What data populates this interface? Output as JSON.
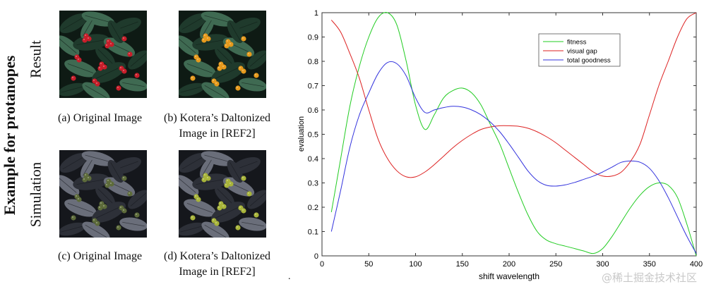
{
  "figure": {
    "side_title": "Example for protanopes",
    "row_result": "Result",
    "row_simulation": "Simulation",
    "captions": {
      "a": "(a) Original Image",
      "b1": "(b) Kotera’s Daltonized",
      "b2": "Image in [REF2]",
      "c": "(c) Original Image",
      "d1": "(d) Kotera’s Daltonized",
      "d2": "Image in [REF2]"
    },
    "dot": ".",
    "watermark": "@稀土掘金技术社区",
    "photo_colors": {
      "original_berry": "#c81e2a",
      "daltonized_berry": "#e69a1c",
      "sim_original_berry": "#5d6b3a",
      "sim_daltonized_berry": "#a8b43a",
      "leaf_dark": "#1f3a2c",
      "leaf_mid": "#3f6a52",
      "sim_leaf_dark": "#2d3038",
      "sim_leaf_mid": "#6a6e7a"
    }
  },
  "chart_data": {
    "type": "line",
    "xlabel": "shift wavelength",
    "ylabel": "evaluation",
    "xlim": [
      0,
      400
    ],
    "ylim": [
      0,
      1
    ],
    "xticks": [
      "0",
      "50",
      "100",
      "150",
      "200",
      "250",
      "300",
      "350",
      "400"
    ],
    "yticks": [
      "0",
      "0.1",
      "0.2",
      "0.3",
      "0.4",
      "0.5",
      "0.6",
      "0.7",
      "0.8",
      "0.9",
      "1"
    ],
    "grid": false,
    "legend": "top-right",
    "series": [
      {
        "name": "fitness",
        "color": "#22cc22",
        "points": [
          [
            10,
            0.18
          ],
          [
            20,
            0.4
          ],
          [
            30,
            0.62
          ],
          [
            40,
            0.78
          ],
          [
            50,
            0.9
          ],
          [
            60,
            0.98
          ],
          [
            70,
            1.0
          ],
          [
            80,
            0.95
          ],
          [
            90,
            0.8
          ],
          [
            100,
            0.62
          ],
          [
            110,
            0.52
          ],
          [
            120,
            0.58
          ],
          [
            130,
            0.65
          ],
          [
            140,
            0.68
          ],
          [
            150,
            0.69
          ],
          [
            160,
            0.67
          ],
          [
            170,
            0.62
          ],
          [
            180,
            0.54
          ],
          [
            190,
            0.46
          ],
          [
            200,
            0.36
          ],
          [
            210,
            0.26
          ],
          [
            220,
            0.17
          ],
          [
            230,
            0.1
          ],
          [
            240,
            0.065
          ],
          [
            250,
            0.05
          ],
          [
            260,
            0.04
          ],
          [
            270,
            0.03
          ],
          [
            280,
            0.02
          ],
          [
            290,
            0.01
          ],
          [
            300,
            0.03
          ],
          [
            310,
            0.08
          ],
          [
            320,
            0.14
          ],
          [
            330,
            0.2
          ],
          [
            340,
            0.25
          ],
          [
            350,
            0.285
          ],
          [
            360,
            0.3
          ],
          [
            370,
            0.29
          ],
          [
            380,
            0.24
          ],
          [
            390,
            0.13
          ],
          [
            400,
            0.0
          ]
        ]
      },
      {
        "name": "visual gap",
        "color": "#dd2222",
        "points": [
          [
            10,
            0.97
          ],
          [
            20,
            0.92
          ],
          [
            30,
            0.83
          ],
          [
            40,
            0.73
          ],
          [
            50,
            0.6
          ],
          [
            60,
            0.48
          ],
          [
            70,
            0.4
          ],
          [
            80,
            0.35
          ],
          [
            90,
            0.325
          ],
          [
            100,
            0.325
          ],
          [
            110,
            0.345
          ],
          [
            120,
            0.375
          ],
          [
            130,
            0.41
          ],
          [
            140,
            0.445
          ],
          [
            150,
            0.475
          ],
          [
            160,
            0.5
          ],
          [
            170,
            0.52
          ],
          [
            180,
            0.53
          ],
          [
            190,
            0.535
          ],
          [
            200,
            0.535
          ],
          [
            210,
            0.533
          ],
          [
            220,
            0.525
          ],
          [
            230,
            0.51
          ],
          [
            240,
            0.49
          ],
          [
            250,
            0.465
          ],
          [
            260,
            0.435
          ],
          [
            270,
            0.405
          ],
          [
            280,
            0.375
          ],
          [
            290,
            0.345
          ],
          [
            300,
            0.328
          ],
          [
            310,
            0.328
          ],
          [
            320,
            0.345
          ],
          [
            330,
            0.39
          ],
          [
            340,
            0.46
          ],
          [
            350,
            0.58
          ],
          [
            360,
            0.7
          ],
          [
            370,
            0.8
          ],
          [
            380,
            0.9
          ],
          [
            390,
            0.975
          ],
          [
            400,
            1.0
          ]
        ]
      },
      {
        "name": "total goodness",
        "color": "#3333dd",
        "points": [
          [
            10,
            0.1
          ],
          [
            20,
            0.27
          ],
          [
            30,
            0.45
          ],
          [
            40,
            0.58
          ],
          [
            50,
            0.67
          ],
          [
            60,
            0.75
          ],
          [
            70,
            0.795
          ],
          [
            80,
            0.79
          ],
          [
            90,
            0.74
          ],
          [
            100,
            0.65
          ],
          [
            110,
            0.59
          ],
          [
            120,
            0.6
          ],
          [
            130,
            0.61
          ],
          [
            140,
            0.615
          ],
          [
            150,
            0.612
          ],
          [
            160,
            0.6
          ],
          [
            170,
            0.58
          ],
          [
            180,
            0.55
          ],
          [
            190,
            0.51
          ],
          [
            200,
            0.46
          ],
          [
            210,
            0.405
          ],
          [
            220,
            0.35
          ],
          [
            230,
            0.31
          ],
          [
            240,
            0.29
          ],
          [
            250,
            0.287
          ],
          [
            260,
            0.292
          ],
          [
            270,
            0.302
          ],
          [
            280,
            0.315
          ],
          [
            290,
            0.328
          ],
          [
            300,
            0.345
          ],
          [
            310,
            0.365
          ],
          [
            320,
            0.385
          ],
          [
            330,
            0.39
          ],
          [
            340,
            0.385
          ],
          [
            350,
            0.36
          ],
          [
            360,
            0.31
          ],
          [
            370,
            0.24
          ],
          [
            380,
            0.16
          ],
          [
            390,
            0.08
          ],
          [
            400,
            0.01
          ]
        ]
      }
    ]
  }
}
